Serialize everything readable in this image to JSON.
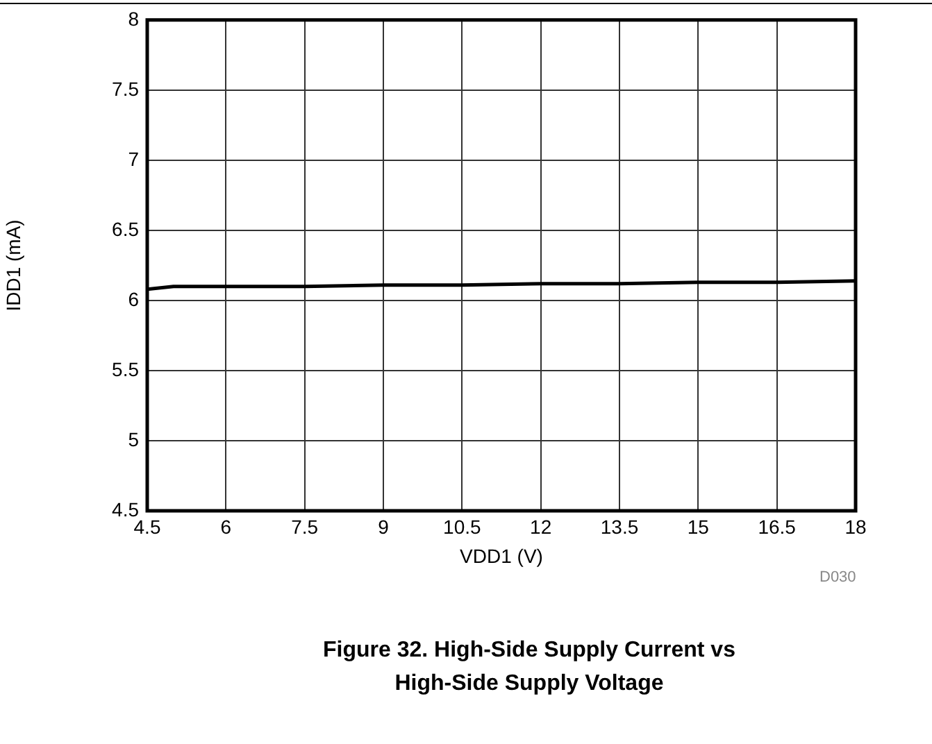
{
  "chart_data": {
    "type": "line",
    "title": "Figure 32. High-Side Supply Current vs High-Side Supply Voltage",
    "xlabel": "VDD1 (V)",
    "ylabel": "IDD1 (mA)",
    "annotations": [
      "D030"
    ],
    "x": [
      4.5,
      5,
      6,
      7.5,
      9,
      10.5,
      12,
      13.5,
      15,
      16.5,
      18
    ],
    "series": [
      {
        "color": "#000000",
        "values": [
          6.08,
          6.1,
          6.1,
          6.1,
          6.11,
          6.11,
          6.12,
          6.12,
          6.13,
          6.13,
          6.14
        ]
      }
    ],
    "xlim": [
      4.5,
      18
    ],
    "xticks": [
      4.5,
      6,
      7.5,
      9,
      10.5,
      12,
      13.5,
      15,
      16.5,
      18
    ],
    "ylim": [
      4.5,
      8
    ],
    "yticks": [
      4.5,
      5,
      5.5,
      6,
      6.5,
      7,
      7.5,
      8
    ],
    "grid": true,
    "legend": false,
    "marker": "none",
    "line_style": "solid"
  }
}
